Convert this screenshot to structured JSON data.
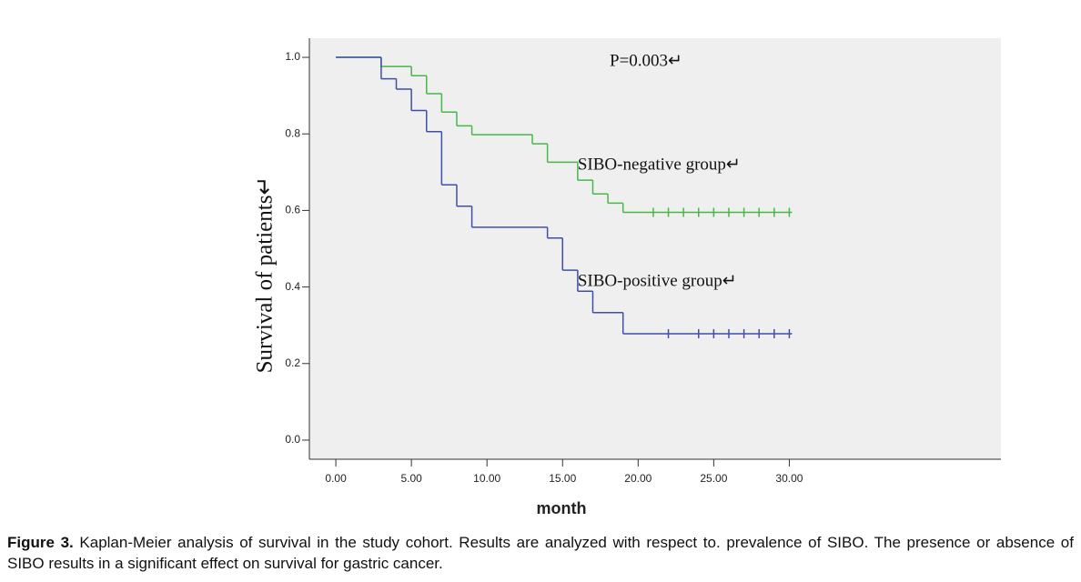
{
  "chart_data": {
    "type": "step",
    "y_label": "Survival of patients↵",
    "x_label": "month",
    "annotation": "P=0.003↵",
    "xlim": [
      -1.75,
      44
    ],
    "ylim": [
      -0.05,
      1.05
    ],
    "xticks": [
      {
        "value": 0,
        "label": "0.00"
      },
      {
        "value": 5,
        "label": "5.00"
      },
      {
        "value": 10,
        "label": "10.00"
      },
      {
        "value": 15,
        "label": "15.00"
      },
      {
        "value": 20,
        "label": "20.00"
      },
      {
        "value": 25,
        "label": "25.00"
      },
      {
        "value": 30,
        "label": "30.00"
      }
    ],
    "yticks": [
      {
        "value": 0,
        "label": "0.0"
      },
      0.2,
      0.4,
      0.6,
      0.8,
      {
        "value": 1,
        "label": "1.0"
      }
    ],
    "series": [
      {
        "name": "SIBO-negative group↵",
        "color": "#45b845",
        "x": [
          0,
          3,
          5,
          6,
          7,
          8,
          9,
          13,
          14,
          16,
          17,
          18,
          19
        ],
        "values": [
          1,
          0.976,
          0.952,
          0.905,
          0.857,
          0.821,
          0.798,
          0.774,
          0.726,
          0.679,
          0.643,
          0.619,
          0.595
        ],
        "censored_x": [
          21,
          22,
          23,
          24,
          25,
          26,
          27,
          28,
          29,
          30
        ]
      },
      {
        "name": "SIBO-positive group↵",
        "color": "#3f4fa8",
        "x": [
          0,
          3,
          4,
          5,
          6,
          7,
          8,
          9,
          14,
          15,
          16,
          17,
          19
        ],
        "values": [
          1,
          0.944,
          0.917,
          0.861,
          0.806,
          0.667,
          0.611,
          0.556,
          0.528,
          0.444,
          0.389,
          0.333,
          0.278
        ],
        "censored_x": [
          22,
          24,
          25,
          26,
          27,
          28,
          29,
          30
        ]
      }
    ]
  },
  "caption": {
    "label": "Figure 3.",
    "text": "Kaplan-Meier analysis of survival in the study cohort. Results are analyzed with respect to. prevalence of SIBO. The presence or absence of SIBO results in a significant effect on survival for gastric cancer."
  }
}
